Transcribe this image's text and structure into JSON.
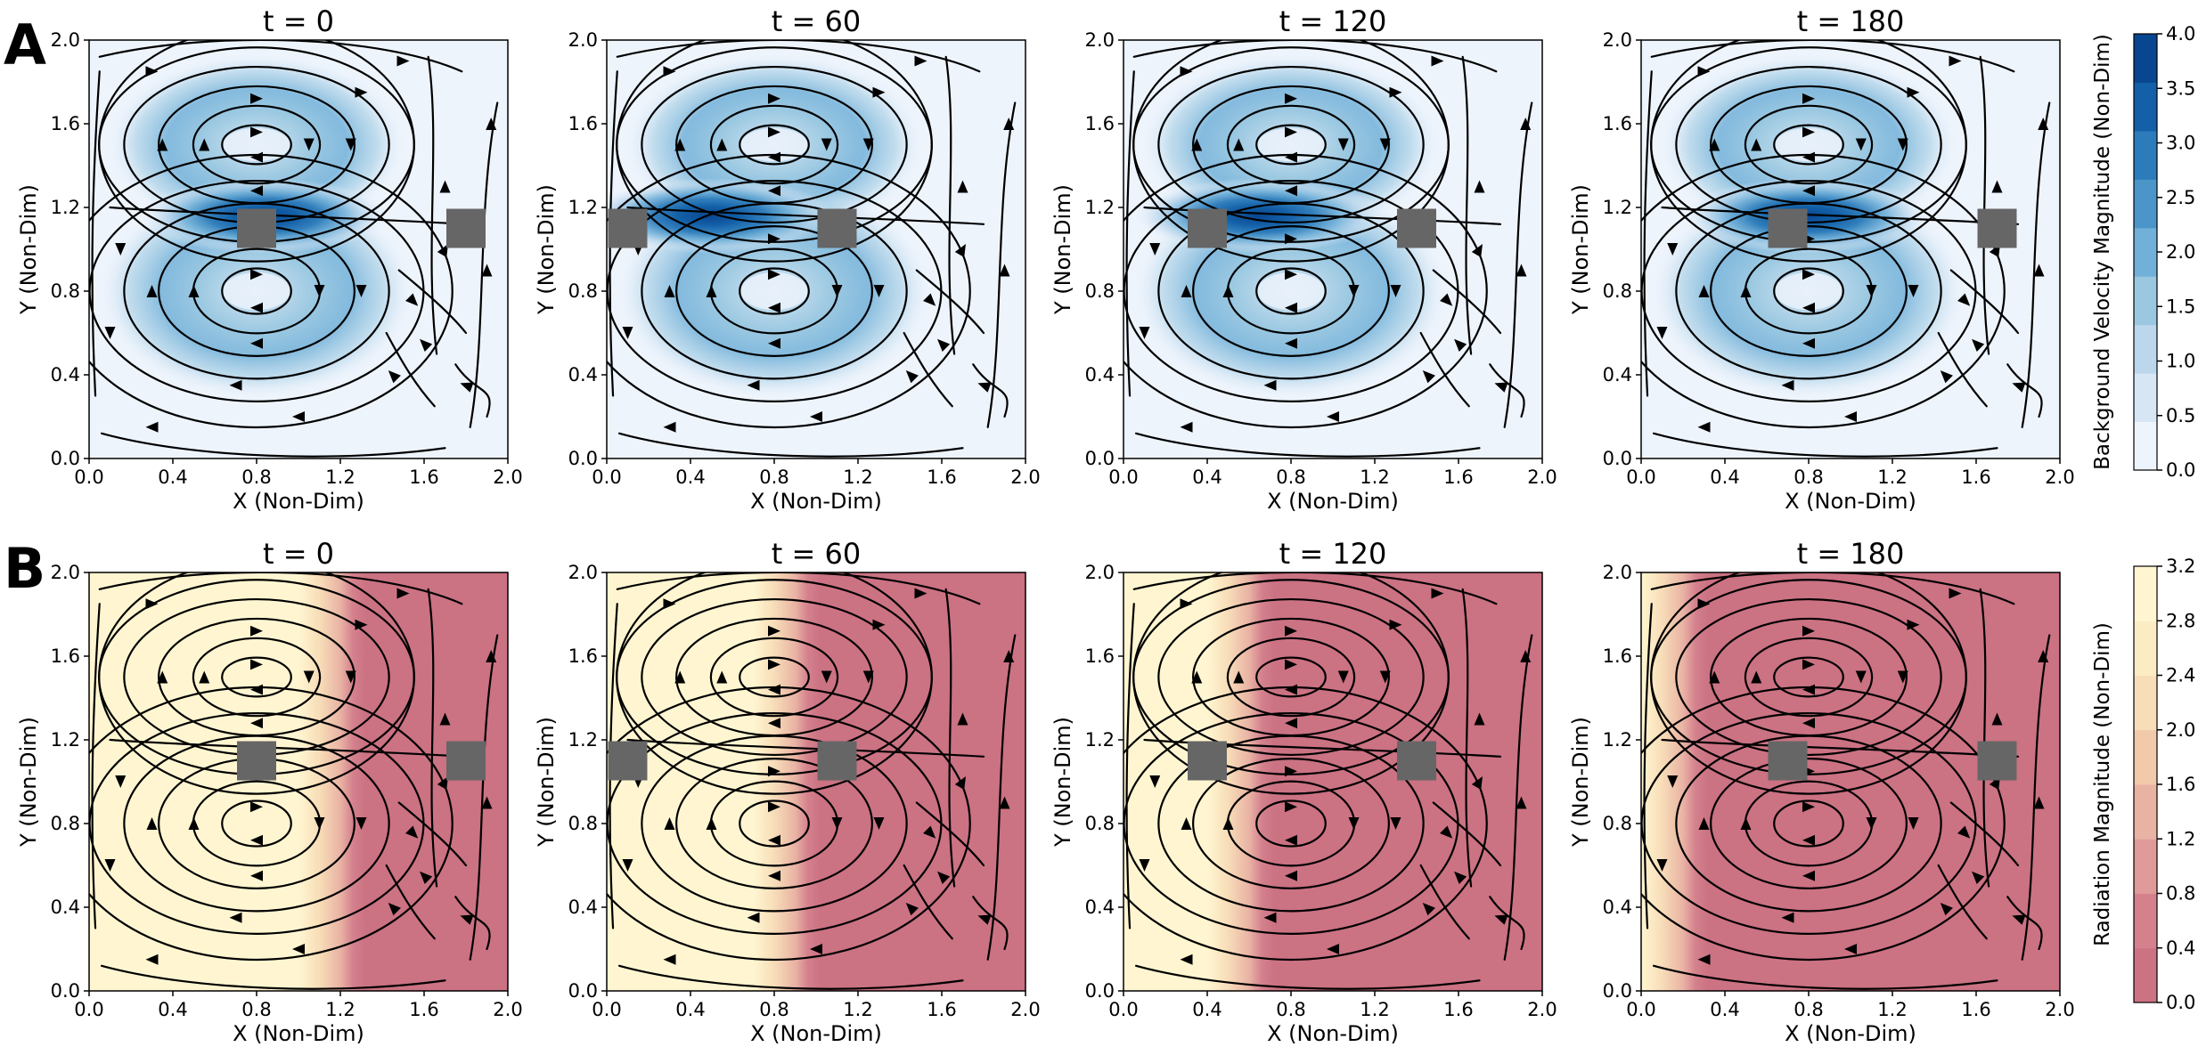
{
  "figure": {
    "panel_labels": [
      "A",
      "B"
    ],
    "obstacle_color": "#666666"
  },
  "chart_data": [
    {
      "type": "heatmap",
      "panel": "A",
      "titles": [
        "t = 0",
        "t = 60",
        "t = 120",
        "t = 180"
      ],
      "xlabel": "X (Non-Dim)",
      "ylabel": "Y (Non-Dim)",
      "xlim": [
        0,
        2
      ],
      "ylim": [
        0,
        2
      ],
      "xticks": [
        "0.0",
        "0.4",
        "0.8",
        "1.2",
        "1.6",
        "2.0"
      ],
      "yticks": [
        "0.0",
        "0.4",
        "0.8",
        "1.2",
        "1.6",
        "2.0"
      ],
      "colorbar": {
        "label": "Background Velocity Magnitude (Non-Dim)",
        "range": [
          0,
          4
        ],
        "ticks": [
          "0.0",
          "0.5",
          "1.0",
          "1.5",
          "2.0",
          "2.5",
          "3.0",
          "3.5",
          "4.0"
        ],
        "colors": [
          "#eef4fc",
          "#d6e6f4",
          "#bcd7ec",
          "#9ac8e1",
          "#71b0d8",
          "#4c95c9",
          "#2c7bba",
          "#1460a8",
          "#08468f"
        ]
      },
      "obstacles_x": [
        [
          0.8,
          1.8
        ],
        [
          0.1,
          1.1
        ],
        [
          0.4,
          1.4
        ],
        [
          0.7,
          1.7
        ]
      ],
      "obstacle_y": 1.1,
      "vortex_centers": [
        [
          0.8,
          1.5
        ],
        [
          0.8,
          0.8
        ]
      ]
    },
    {
      "type": "heatmap",
      "panel": "B",
      "titles": [
        "t = 0",
        "t = 60",
        "t = 120",
        "t = 180"
      ],
      "xlabel": "X (Non-Dim)",
      "ylabel": "Y (Non-Dim)",
      "xlim": [
        0,
        2
      ],
      "ylim": [
        0,
        2
      ],
      "xticks": [
        "0.0",
        "0.4",
        "0.8",
        "1.2",
        "1.6",
        "2.0"
      ],
      "yticks": [
        "0.0",
        "0.4",
        "0.8",
        "1.2",
        "1.6",
        "2.0"
      ],
      "colorbar": {
        "label": "Radiation Magnitude (Non-Dim)",
        "range": [
          0,
          3.2
        ],
        "ticks": [
          "0.0",
          "0.4",
          "0.8",
          "1.2",
          "1.6",
          "2.0",
          "2.4",
          "2.8",
          "3.2"
        ],
        "colors": [
          "#cb7283",
          "#d4818d",
          "#df9a99",
          "#e9b3a4",
          "#f1c9ab",
          "#f7ddb8",
          "#fcecc3",
          "#fff6d1"
        ]
      },
      "front_x": [
        1.2,
        0.9,
        0.6,
        0.2
      ],
      "obstacles_x": [
        [
          0.8,
          1.8
        ],
        [
          0.1,
          1.1
        ],
        [
          0.4,
          1.4
        ],
        [
          0.7,
          1.7
        ]
      ],
      "obstacle_y": 1.1,
      "vortex_centers": [
        [
          0.8,
          1.5
        ],
        [
          0.8,
          0.8
        ]
      ]
    }
  ]
}
